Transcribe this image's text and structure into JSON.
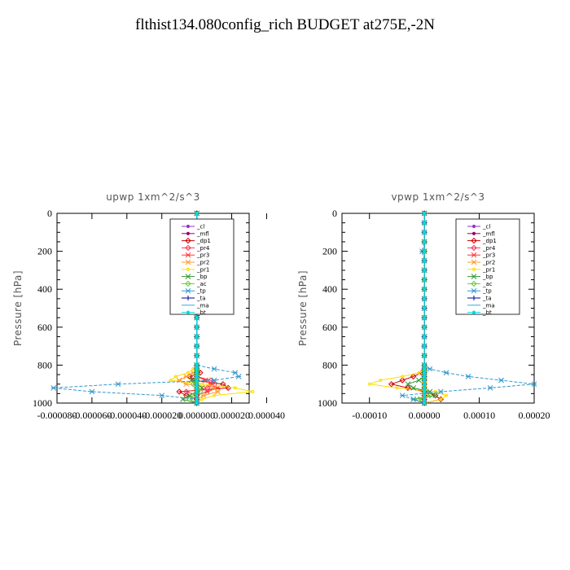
{
  "figure_title": "flthist134.080config_rich  BUDGET at275E,-2N",
  "chart_data": [
    {
      "type": "line",
      "title": "upwp   1xm^2/s^3",
      "ylabel": "Pressure [hPa]",
      "xlabel": "",
      "ylim": [
        1000,
        0
      ],
      "xlim": [
        -8e-05,
        3e-05
      ],
      "xticks": [
        -8e-05,
        -6e-05,
        -4e-05,
        -2e-05,
        0.0,
        2e-05,
        4e-05
      ],
      "xtick_labels": [
        "-0.000080",
        "-0.000060",
        "-0.000040",
        "-0.000020",
        "0.000000",
        "0.000020",
        "0.000040"
      ],
      "yticks": [
        0,
        200,
        400,
        600,
        800,
        1000
      ],
      "ytick_labels": [
        "0",
        "200",
        "400",
        "600",
        "800",
        "1000"
      ],
      "grid": false,
      "legend_position": "top-right",
      "y": [
        0,
        50,
        100,
        150,
        200,
        250,
        300,
        350,
        400,
        450,
        500,
        550,
        600,
        650,
        700,
        750,
        800,
        820,
        840,
        860,
        880,
        900,
        920,
        940,
        960,
        980,
        1000
      ],
      "series": [
        {
          "name": "_cl",
          "color": "#9933cc",
          "marker": "dot",
          "values": [
            0,
            0,
            0,
            0,
            0,
            0,
            0,
            0,
            0,
            0,
            0,
            0,
            0,
            0,
            0,
            0,
            0,
            0,
            0,
            0,
            0,
            0,
            0,
            0,
            0,
            0,
            0
          ]
        },
        {
          "name": "_mfl",
          "color": "#990066",
          "marker": "dot",
          "values": [
            0,
            0,
            0,
            0,
            0,
            0,
            0,
            0,
            0,
            0,
            0,
            0,
            0,
            0,
            0,
            0,
            0,
            0,
            0,
            0,
            0,
            0,
            0,
            0,
            0,
            0,
            0
          ]
        },
        {
          "name": "_dp1",
          "color": "#cc0000",
          "marker": "diamond",
          "values": [
            0,
            0,
            0,
            0,
            0,
            0,
            0,
            0,
            0,
            0,
            0,
            0,
            0,
            0,
            0,
            0,
            0,
            0,
            2e-06,
            -4e-06,
            -2e-06,
            1.5e-05,
            1.8e-05,
            -1e-05,
            -6e-06,
            0,
            0
          ]
        },
        {
          "name": "_pr4",
          "color": "#ff3355",
          "marker": "diamond",
          "values": [
            0,
            0,
            2e-06,
            0,
            -2e-06,
            0,
            0,
            0,
            0,
            0,
            0,
            0,
            0,
            0,
            0,
            0,
            0,
            0,
            0,
            0,
            8e-06,
            1e-05,
            6e-06,
            -6e-06,
            0,
            0,
            0
          ]
        },
        {
          "name": "_pr3",
          "color": "#ff3333",
          "marker": "star",
          "values": [
            0,
            0,
            0,
            3e-06,
            2e-06,
            0,
            0,
            0,
            0,
            0,
            0,
            0,
            0,
            0,
            0,
            0,
            0,
            0,
            0,
            0,
            5e-06,
            8e-06,
            1.2e-05,
            6e-06,
            0,
            0,
            0
          ]
        },
        {
          "name": "_pr2",
          "color": "#ff9933",
          "marker": "star",
          "values": [
            0,
            0,
            0,
            2e-06,
            0,
            0,
            0,
            0,
            0,
            0,
            0,
            0,
            0,
            0,
            0,
            0,
            0,
            0,
            -2e-06,
            -6e-06,
            -1e-05,
            -6e-06,
            1e-05,
            1.2e-05,
            4e-06,
            0,
            0
          ]
        },
        {
          "name": "_pr1",
          "color": "#ffdd00",
          "marker": "circle",
          "values": [
            0,
            0,
            0,
            0,
            -3e-06,
            0,
            0,
            0,
            0,
            0,
            0,
            0,
            0,
            0,
            0,
            0,
            0,
            -2e-06,
            -5e-06,
            -1.2e-05,
            -1.5e-05,
            3e-06,
            2.2e-05,
            3.2e-05,
            1e-05,
            3e-06,
            0
          ]
        },
        {
          "name": "_bp",
          "color": "#339933",
          "marker": "x",
          "values": [
            0,
            0,
            0,
            0,
            0,
            0,
            0,
            0,
            0,
            0,
            0,
            0,
            0,
            0,
            0,
            0,
            0,
            0,
            0,
            0,
            -3e-06,
            0,
            3e-06,
            0,
            -4e-06,
            -8e-06,
            0
          ]
        },
        {
          "name": "_ac",
          "color": "#66cc33",
          "marker": "diamond",
          "values": [
            0,
            0,
            0,
            0,
            0,
            0,
            0,
            0,
            0,
            0,
            0,
            0,
            0,
            0,
            0,
            0,
            0,
            0,
            0,
            0,
            0,
            -2e-06,
            0,
            2e-06,
            -2e-06,
            -4e-06,
            0
          ]
        },
        {
          "name": "_tp",
          "color": "#3399cc",
          "marker": "star",
          "values": [
            0,
            0,
            2e-06,
            -3e-06,
            -1e-05,
            -3e-06,
            0,
            0,
            0,
            0,
            -2e-06,
            0,
            0,
            0,
            0,
            0,
            0,
            1e-05,
            2.2e-05,
            2.4e-05,
            1e-05,
            -4.5e-05,
            -8.2e-05,
            -6e-05,
            -2e-05,
            0,
            0
          ]
        },
        {
          "name": "_ta",
          "color": "#000099",
          "marker": "plus",
          "values": [
            0,
            0,
            0,
            0,
            0,
            0,
            0,
            0,
            0,
            0,
            0,
            0,
            0,
            0,
            0,
            0,
            0,
            0,
            0,
            0,
            0,
            0,
            0,
            0,
            0,
            0,
            0
          ]
        },
        {
          "name": "_ma",
          "color": "#33aacc",
          "marker": "line",
          "values": [
            0,
            0,
            0,
            0,
            0,
            0,
            0,
            0,
            0,
            0,
            0,
            0,
            0,
            0,
            0,
            0,
            0,
            0,
            0,
            0,
            0,
            0,
            0,
            0,
            0,
            0,
            0
          ]
        },
        {
          "name": "_bt",
          "color": "#00dddd",
          "marker": "dot",
          "values": [
            0,
            0,
            0,
            0,
            0,
            0,
            0,
            0,
            0,
            0,
            0,
            0,
            0,
            0,
            0,
            0,
            0,
            0,
            0,
            0,
            0,
            0,
            0,
            0,
            0,
            0,
            0
          ]
        }
      ]
    },
    {
      "type": "line",
      "title": "vpwp   1xm^2/s^3",
      "ylabel": "Pressure [hPa]",
      "xlabel": "",
      "ylim": [
        1000,
        0
      ],
      "xlim": [
        -0.00015,
        0.0002
      ],
      "xticks": [
        -0.0001,
        0.0,
        0.0001,
        0.0002
      ],
      "xtick_labels": [
        "-0.00010",
        "0.00000",
        "0.00010",
        "0.00020"
      ],
      "yticks": [
        0,
        200,
        400,
        600,
        800,
        1000
      ],
      "ytick_labels": [
        "0",
        "200",
        "400",
        "600",
        "800",
        "1000"
      ],
      "grid": false,
      "legend_position": "top-right",
      "y": [
        0,
        50,
        100,
        150,
        200,
        250,
        300,
        350,
        400,
        450,
        500,
        550,
        600,
        650,
        700,
        750,
        800,
        820,
        840,
        860,
        880,
        900,
        920,
        940,
        960,
        980,
        1000
      ],
      "series": [
        {
          "name": "_cl",
          "color": "#9933cc",
          "marker": "dot",
          "values": [
            0,
            0,
            0,
            0,
            0,
            0,
            0,
            0,
            0,
            0,
            0,
            0,
            0,
            0,
            0,
            0,
            0,
            0,
            0,
            0,
            0,
            0,
            0,
            0,
            0,
            0,
            0
          ]
        },
        {
          "name": "_mfl",
          "color": "#990066",
          "marker": "dot",
          "values": [
            0,
            0,
            0,
            0,
            0,
            0,
            0,
            0,
            0,
            0,
            0,
            0,
            0,
            0,
            0,
            0,
            0,
            0,
            0,
            0,
            0,
            0,
            0,
            0,
            0,
            0,
            0
          ]
        },
        {
          "name": "_dp1",
          "color": "#cc0000",
          "marker": "diamond",
          "values": [
            0,
            0,
            0,
            0,
            0,
            0,
            0,
            0,
            0,
            0,
            0,
            0,
            0,
            0,
            0,
            0,
            0,
            0,
            -5e-06,
            -2e-05,
            -4e-05,
            -6e-05,
            -3e-05,
            0,
            2e-05,
            3e-05,
            0
          ]
        },
        {
          "name": "_pr4",
          "color": "#ff3355",
          "marker": "diamond",
          "values": [
            0,
            0,
            0,
            0,
            0,
            0,
            0,
            0,
            0,
            0,
            0,
            0,
            0,
            0,
            0,
            0,
            0,
            0,
            0,
            0,
            0,
            0,
            0,
            0,
            0,
            0,
            0
          ]
        },
        {
          "name": "_pr3",
          "color": "#ff3333",
          "marker": "star",
          "values": [
            0,
            0,
            0,
            0,
            0,
            0,
            0,
            0,
            0,
            0,
            0,
            0,
            0,
            0,
            0,
            0,
            0,
            0,
            0,
            0,
            0,
            0,
            0,
            0,
            0,
            0,
            0
          ]
        },
        {
          "name": "_pr2",
          "color": "#ff9933",
          "marker": "star",
          "values": [
            0,
            0,
            0,
            0,
            0,
            0,
            0,
            0,
            0,
            0,
            0,
            0,
            0,
            0,
            0,
            0,
            0,
            0,
            0,
            0,
            0,
            0,
            0,
            0,
            0,
            0,
            0
          ]
        },
        {
          "name": "_pr1",
          "color": "#ffdd00",
          "marker": "circle",
          "values": [
            0,
            0,
            0,
            0,
            0,
            0,
            0,
            0,
            0,
            0,
            0,
            0,
            0,
            0,
            0,
            0,
            0,
            0,
            -1e-05,
            -4e-05,
            -8e-05,
            -0.0001,
            -5e-05,
            2e-05,
            4e-05,
            3e-05,
            0
          ]
        },
        {
          "name": "_bp",
          "color": "#339933",
          "marker": "x",
          "values": [
            0,
            0,
            0,
            0,
            0,
            0,
            0,
            0,
            0,
            0,
            0,
            0,
            0,
            0,
            0,
            0,
            0,
            0,
            0,
            0,
            -1e-05,
            -3e-05,
            -2e-05,
            1e-05,
            2e-05,
            -2e-05,
            0
          ]
        },
        {
          "name": "_ac",
          "color": "#66cc33",
          "marker": "diamond",
          "values": [
            0,
            0,
            0,
            0,
            0,
            0,
            0,
            0,
            0,
            0,
            0,
            0,
            0,
            0,
            0,
            0,
            0,
            0,
            0,
            0,
            0,
            0,
            0,
            0,
            1e-05,
            -1e-05,
            0
          ]
        },
        {
          "name": "_tp",
          "color": "#3399cc",
          "marker": "star",
          "values": [
            0,
            0,
            0,
            0,
            -4e-06,
            0,
            0,
            0,
            0,
            0,
            0,
            0,
            0,
            0,
            0,
            0,
            0,
            1e-05,
            4e-05,
            8e-05,
            0.00014,
            0.0002,
            0.00012,
            3e-05,
            -4e-05,
            -2e-05,
            0
          ]
        },
        {
          "name": "_ta",
          "color": "#000099",
          "marker": "plus",
          "values": [
            0,
            0,
            0,
            0,
            0,
            0,
            0,
            0,
            0,
            0,
            0,
            0,
            0,
            0,
            0,
            0,
            0,
            0,
            0,
            0,
            0,
            0,
            0,
            0,
            0,
            0,
            0
          ]
        },
        {
          "name": "_ma",
          "color": "#33aacc",
          "marker": "line",
          "values": [
            0,
            0,
            0,
            0,
            0,
            0,
            0,
            0,
            0,
            0,
            0,
            0,
            0,
            0,
            0,
            0,
            0,
            0,
            0,
            0,
            0,
            0,
            0,
            0,
            0,
            0,
            0
          ]
        },
        {
          "name": "_bt",
          "color": "#00dddd",
          "marker": "dot",
          "values": [
            0,
            0,
            0,
            0,
            0,
            0,
            0,
            0,
            0,
            0,
            0,
            0,
            0,
            0,
            0,
            0,
            0,
            0,
            0,
            0,
            0,
            0,
            0,
            0,
            0,
            0,
            0
          ]
        }
      ]
    }
  ]
}
